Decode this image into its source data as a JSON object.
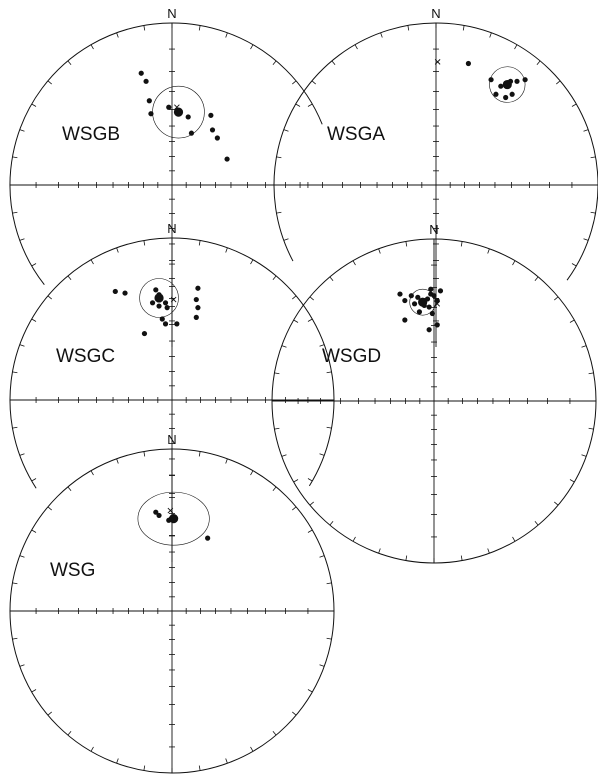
{
  "figure": {
    "ink_color": "#111111",
    "background": "#ffffff",
    "north_label": "N",
    "plots": [
      {
        "name": "WSGB",
        "points": [
          [
            -0.16,
            0.64
          ],
          [
            -0.19,
            0.69
          ],
          [
            -0.14,
            0.52
          ],
          [
            -0.13,
            0.44
          ],
          [
            -0.02,
            0.48
          ],
          [
            0.04,
            0.46
          ],
          [
            0.1,
            0.42
          ],
          [
            0.24,
            0.43
          ],
          [
            0.25,
            0.34
          ],
          [
            0.12,
            0.32
          ],
          [
            0.28,
            0.29
          ],
          [
            0.34,
            0.16
          ]
        ],
        "mean": [
          0.04,
          0.45
        ],
        "confidence_radius": 0.16,
        "cross": [
          0.03,
          0.48
        ]
      },
      {
        "name": "WSGA",
        "points": [
          [
            0.2,
            0.75
          ],
          [
            0.34,
            0.65
          ],
          [
            0.4,
            0.61
          ],
          [
            0.46,
            0.64
          ],
          [
            0.5,
            0.64
          ],
          [
            0.55,
            0.65
          ],
          [
            0.37,
            0.56
          ],
          [
            0.47,
            0.56
          ],
          [
            0.43,
            0.54
          ]
        ],
        "mean": [
          0.44,
          0.62
        ],
        "confidence_radius": 0.11,
        "cross": [
          0.01,
          0.76
        ]
      },
      {
        "name": "WSGC",
        "points": [
          [
            -0.35,
            0.67
          ],
          [
            -0.29,
            0.66
          ],
          [
            -0.1,
            0.68
          ],
          [
            -0.08,
            0.65
          ],
          [
            -0.12,
            0.6
          ],
          [
            -0.08,
            0.58
          ],
          [
            -0.04,
            0.6
          ],
          [
            -0.03,
            0.57
          ],
          [
            0.16,
            0.69
          ],
          [
            0.15,
            0.62
          ],
          [
            0.16,
            0.57
          ],
          [
            0.15,
            0.51
          ],
          [
            -0.06,
            0.5
          ],
          [
            -0.04,
            0.47
          ],
          [
            0.03,
            0.47
          ],
          [
            -0.17,
            0.41
          ]
        ],
        "mean": [
          -0.08,
          0.63
        ],
        "confidence_radius": 0.12,
        "cross": [
          0.01,
          0.62
        ]
      },
      {
        "name": "WSGD",
        "points": [
          [
            -0.21,
            0.66
          ],
          [
            -0.18,
            0.62
          ],
          [
            -0.14,
            0.65
          ],
          [
            -0.12,
            0.6
          ],
          [
            -0.1,
            0.64
          ],
          [
            -0.06,
            0.62
          ],
          [
            -0.04,
            0.63
          ],
          [
            -0.02,
            0.69
          ],
          [
            -0.02,
            0.66
          ],
          [
            0.0,
            0.65
          ],
          [
            0.02,
            0.62
          ],
          [
            -0.03,
            0.58
          ],
          [
            -0.06,
            0.59
          ],
          [
            -0.09,
            0.55
          ],
          [
            -0.18,
            0.5
          ],
          [
            -0.01,
            0.54
          ],
          [
            0.02,
            0.47
          ],
          [
            -0.03,
            0.44
          ],
          [
            0.04,
            0.68
          ]
        ],
        "mean": [
          -0.07,
          0.61
        ],
        "confidence_radius": 0.08,
        "cross": [
          0.02,
          0.6
        ]
      },
      {
        "name": "WSG",
        "points": [
          [
            -0.1,
            0.61
          ],
          [
            -0.08,
            0.59
          ],
          [
            -0.02,
            0.56
          ],
          [
            0.01,
            0.56
          ],
          [
            0.01,
            0.58
          ],
          [
            0.22,
            0.45
          ]
        ],
        "mean": [
          0.01,
          0.57
        ],
        "confidence_radius": 0.21,
        "cross": [
          -0.01,
          0.62
        ]
      }
    ]
  }
}
